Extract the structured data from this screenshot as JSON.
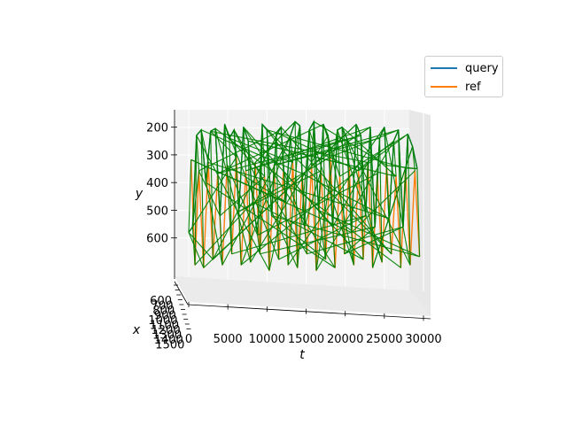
{
  "chart_data": {
    "type": "line",
    "projection": "3d",
    "title": "",
    "xlabel": "t",
    "ylabel": "y",
    "zlabel": "x",
    "t_ticks": [
      "0",
      "5000",
      "10000",
      "15000",
      "20000",
      "25000",
      "30000"
    ],
    "y_ticks": [
      "200",
      "300",
      "400",
      "500",
      "600"
    ],
    "x_ticks": [
      "600",
      "700",
      "800",
      "900",
      "1000",
      "1100",
      "1200",
      "1300",
      "1400",
      "1500"
    ],
    "t_range": [
      0,
      30000
    ],
    "y_range": [
      150,
      700
    ],
    "legend_position": "top-right",
    "series": [
      {
        "name": "query",
        "color": "#1f77b4",
        "t": [
          0,
          500,
          1000,
          1600,
          2200,
          2800,
          3400,
          4000,
          4600,
          5200,
          5800,
          6400,
          7000,
          7600,
          8200,
          8800,
          9400,
          10000,
          10600,
          11200,
          11800,
          12400,
          13000,
          13600,
          14200,
          14800,
          15400,
          16000,
          16600,
          17200,
          17800,
          18400,
          19000,
          19600,
          20200,
          20800,
          21400,
          22000,
          22600,
          23200,
          23800,
          24400,
          25000,
          25600,
          26200,
          26800,
          27400,
          28000,
          28600,
          29200
        ],
        "y": [
          580,
          560,
          230,
          210,
          400,
          215,
          205,
          520,
          190,
          240,
          210,
          505,
          200,
          250,
          470,
          590,
          190,
          210,
          520,
          220,
          200,
          470,
          230,
          180,
          195,
          560,
          210,
          180,
          500,
          190,
          230,
          560,
          210,
          200,
          240,
          580,
          190,
          230,
          520,
          200,
          560,
          240,
          200,
          530,
          250,
          210,
          560,
          225,
          270,
          350
        ]
      },
      {
        "name": "ref",
        "color": "#ff7f0e",
        "t": [
          300,
          800,
          1300,
          1900,
          2500,
          3100,
          3700,
          4300,
          4900,
          5500,
          6100,
          6700,
          7300,
          7900,
          8500,
          9100,
          9700,
          10300,
          10900,
          11500,
          12100,
          12700,
          13300,
          13900,
          14500,
          15100,
          15700,
          16300,
          16900,
          17500,
          18100,
          18700,
          19300,
          19900,
          20500,
          21100,
          21700,
          22300,
          22900,
          23500,
          24100,
          24700,
          25300,
          25900,
          26500,
          27100,
          27700,
          28300,
          28900,
          29500
        ],
        "y": [
          260,
          640,
          300,
          650,
          270,
          620,
          310,
          640,
          280,
          600,
          250,
          640,
          300,
          630,
          270,
          600,
          320,
          660,
          280,
          620,
          300,
          640,
          270,
          650,
          310,
          600,
          280,
          660,
          300,
          620,
          250,
          650,
          320,
          600,
          280,
          640,
          300,
          620,
          270,
          650,
          310,
          630,
          280,
          600,
          320,
          650,
          290,
          640,
          300,
          610
        ]
      }
    ]
  }
}
